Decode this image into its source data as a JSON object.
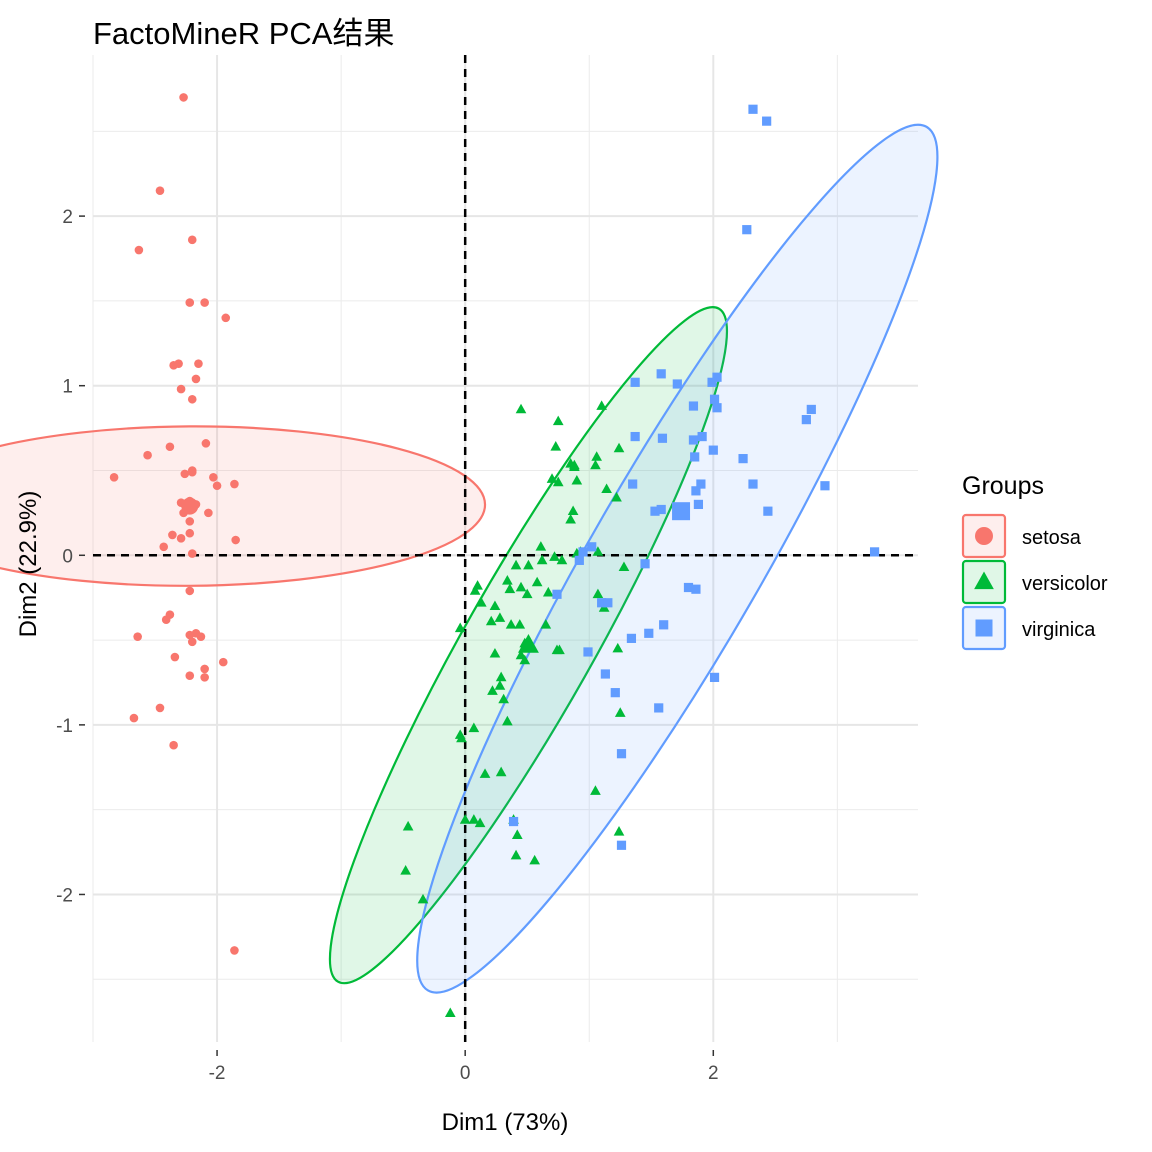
{
  "chart_data": {
    "type": "scatter",
    "title": "FactoMineR PCA结果",
    "xlabel": "Dim1 (73%)",
    "ylabel": "Dim2 (22.9%)",
    "xlim": [
      -3.0,
      3.65
    ],
    "ylim": [
      -2.87,
      2.95
    ],
    "x_ticks": [
      -2,
      0,
      2
    ],
    "y_ticks": [
      -2,
      -1,
      0,
      1,
      2
    ],
    "x_tick_labels": [
      "-2",
      "0",
      "2"
    ],
    "y_tick_labels": [
      "-2",
      "-1",
      "0",
      "1",
      "2"
    ],
    "grid": true,
    "reference_lines": {
      "x": 0,
      "y": 0,
      "style": "dashed"
    },
    "legend": {
      "title": "Groups",
      "placement": "right"
    },
    "series": [
      {
        "name": "setosa",
        "color": "#F8766D",
        "marker": "circle",
        "centroid": [
          -2.22,
          0.29
        ],
        "ellipse": {
          "center": [
            -2.22,
            0.29
          ],
          "rx": 0.47,
          "ry": 2.38,
          "angle": -0.3
        },
        "points": [
          [
            -2.27,
            2.7
          ],
          [
            -2.46,
            2.15
          ],
          [
            -2.63,
            1.8
          ],
          [
            -2.2,
            1.86
          ],
          [
            -2.22,
            1.49
          ],
          [
            -2.1,
            1.49
          ],
          [
            -1.93,
            1.4
          ],
          [
            -2.15,
            1.13
          ],
          [
            -2.35,
            1.12
          ],
          [
            -2.31,
            1.13
          ],
          [
            -2.17,
            1.04
          ],
          [
            -2.29,
            0.98
          ],
          [
            -2.2,
            0.92
          ],
          [
            -2.09,
            0.66
          ],
          [
            -2.38,
            0.64
          ],
          [
            -2.56,
            0.59
          ],
          [
            -2.2,
            0.5
          ],
          [
            -2.83,
            0.46
          ],
          [
            -2.26,
            0.48
          ],
          [
            -2.2,
            0.49
          ],
          [
            -2.03,
            0.46
          ],
          [
            -2.0,
            0.41
          ],
          [
            -1.86,
            0.42
          ],
          [
            -2.26,
            0.3
          ],
          [
            -2.17,
            0.3
          ],
          [
            -2.22,
            0.32
          ],
          [
            -2.29,
            0.31
          ],
          [
            -2.07,
            0.25
          ],
          [
            -2.27,
            0.25
          ],
          [
            -2.22,
            0.2
          ],
          [
            -2.36,
            0.12
          ],
          [
            -2.22,
            0.13
          ],
          [
            -1.85,
            0.09
          ],
          [
            -2.29,
            0.1
          ],
          [
            -2.43,
            0.05
          ],
          [
            -2.2,
            0.01
          ],
          [
            -2.22,
            -0.21
          ],
          [
            -2.38,
            -0.35
          ],
          [
            -2.41,
            -0.38
          ],
          [
            -2.64,
            -0.48
          ],
          [
            -2.17,
            -0.46
          ],
          [
            -2.22,
            -0.47
          ],
          [
            -2.13,
            -0.48
          ],
          [
            -2.2,
            -0.51
          ],
          [
            -2.34,
            -0.6
          ],
          [
            -1.95,
            -0.63
          ],
          [
            -2.1,
            -0.67
          ],
          [
            -2.22,
            -0.71
          ],
          [
            -2.1,
            -0.72
          ],
          [
            -2.46,
            -0.9
          ],
          [
            -2.67,
            -0.96
          ],
          [
            -2.35,
            -1.12
          ],
          [
            -1.86,
            -2.33
          ]
        ]
      },
      {
        "name": "versicolor",
        "color": "#00BA38",
        "marker": "triangle",
        "centroid": [
          0.51,
          -0.53
        ],
        "ellipse": {
          "center": [
            0.51,
            -0.53
          ],
          "rx": 2.28,
          "ry": 0.52,
          "angle": -60.5
        },
        "points": [
          [
            0.45,
            0.86
          ],
          [
            1.1,
            0.88
          ],
          [
            0.75,
            0.79
          ],
          [
            0.88,
            0.52
          ],
          [
            1.05,
            0.53
          ],
          [
            1.24,
            0.63
          ],
          [
            0.73,
            0.64
          ],
          [
            0.85,
            0.54
          ],
          [
            0.88,
            0.53
          ],
          [
            1.06,
            0.58
          ],
          [
            0.75,
            0.43
          ],
          [
            0.7,
            0.45
          ],
          [
            0.9,
            0.44
          ],
          [
            1.14,
            0.39
          ],
          [
            1.22,
            0.34
          ],
          [
            0.87,
            0.26
          ],
          [
            0.85,
            0.21
          ],
          [
            0.9,
            0.01
          ],
          [
            0.61,
            0.05
          ],
          [
            0.93,
            0.02
          ],
          [
            0.78,
            -0.03
          ],
          [
            0.62,
            -0.03
          ],
          [
            0.72,
            -0.01
          ],
          [
            0.51,
            -0.06
          ],
          [
            1.07,
            0.02
          ],
          [
            1.28,
            -0.07
          ],
          [
            0.41,
            -0.06
          ],
          [
            0.34,
            -0.15
          ],
          [
            0.45,
            -0.19
          ],
          [
            0.58,
            -0.16
          ],
          [
            0.67,
            -0.22
          ],
          [
            0.5,
            -0.23
          ],
          [
            0.36,
            -0.2
          ],
          [
            1.07,
            -0.23
          ],
          [
            0.1,
            -0.18
          ],
          [
            0.08,
            -0.21
          ],
          [
            0.13,
            -0.28
          ],
          [
            0.24,
            -0.3
          ],
          [
            0.28,
            -0.37
          ],
          [
            0.21,
            -0.39
          ],
          [
            1.12,
            -0.31
          ],
          [
            0.44,
            -0.41
          ],
          [
            0.37,
            -0.41
          ],
          [
            0.65,
            -0.41
          ],
          [
            0.48,
            -0.52
          ],
          [
            0.53,
            -0.53
          ],
          [
            0.48,
            -0.62
          ],
          [
            0.45,
            -0.59
          ],
          [
            0.24,
            -0.58
          ],
          [
            0.74,
            -0.56
          ],
          [
            0.76,
            -0.56
          ],
          [
            1.23,
            -0.55
          ],
          [
            -0.04,
            -0.43
          ],
          [
            0.29,
            -0.72
          ],
          [
            0.28,
            -0.77
          ],
          [
            0.22,
            -0.8
          ],
          [
            0.31,
            -0.85
          ],
          [
            0.34,
            -0.98
          ],
          [
            1.25,
            -0.93
          ],
          [
            0.07,
            -1.02
          ],
          [
            -0.04,
            -1.06
          ],
          [
            -0.03,
            -1.08
          ],
          [
            0.16,
            -1.29
          ],
          [
            0.29,
            -1.28
          ],
          [
            1.05,
            -1.39
          ],
          [
            0.0,
            -1.56
          ],
          [
            0.07,
            -1.56
          ],
          [
            0.12,
            -1.58
          ],
          [
            0.39,
            -1.56
          ],
          [
            0.42,
            -1.65
          ],
          [
            1.24,
            -1.63
          ],
          [
            -0.46,
            -1.6
          ],
          [
            0.41,
            -1.77
          ],
          [
            0.56,
            -1.8
          ],
          [
            -0.48,
            -1.86
          ],
          [
            -0.34,
            -2.03
          ],
          [
            -0.12,
            -2.7
          ]
        ]
      },
      {
        "name": "virginica",
        "color": "#619CFF",
        "marker": "square",
        "centroid": [
          1.74,
          0.26
        ],
        "ellipse": {
          "center": [
            1.71,
            -0.02
          ],
          "rx": 2.94,
          "ry": 0.69,
          "angle": -60
        },
        "points": [
          [
            2.32,
            2.63
          ],
          [
            2.43,
            2.56
          ],
          [
            2.27,
            1.92
          ],
          [
            1.58,
            1.07
          ],
          [
            2.03,
            1.05
          ],
          [
            1.37,
            1.02
          ],
          [
            1.71,
            1.01
          ],
          [
            1.99,
            1.02
          ],
          [
            2.01,
            0.92
          ],
          [
            1.84,
            0.88
          ],
          [
            2.03,
            0.87
          ],
          [
            2.79,
            0.86
          ],
          [
            2.75,
            0.8
          ],
          [
            1.37,
            0.7
          ],
          [
            1.59,
            0.69
          ],
          [
            1.84,
            0.68
          ],
          [
            1.91,
            0.7
          ],
          [
            1.85,
            0.58
          ],
          [
            2.0,
            0.62
          ],
          [
            2.24,
            0.57
          ],
          [
            1.35,
            0.42
          ],
          [
            1.9,
            0.42
          ],
          [
            1.86,
            0.38
          ],
          [
            2.32,
            0.42
          ],
          [
            2.9,
            0.41
          ],
          [
            1.53,
            0.26
          ],
          [
            1.58,
            0.27
          ],
          [
            1.76,
            0.28
          ],
          [
            1.88,
            0.3
          ],
          [
            2.44,
            0.26
          ],
          [
            1.02,
            0.05
          ],
          [
            0.95,
            0.02
          ],
          [
            0.92,
            -0.03
          ],
          [
            1.45,
            -0.05
          ],
          [
            1.8,
            -0.19
          ],
          [
            1.86,
            -0.2
          ],
          [
            0.74,
            -0.23
          ],
          [
            1.1,
            -0.28
          ],
          [
            1.15,
            -0.28
          ],
          [
            1.48,
            -0.46
          ],
          [
            1.6,
            -0.41
          ],
          [
            1.34,
            -0.49
          ],
          [
            0.99,
            -0.57
          ],
          [
            1.13,
            -0.7
          ],
          [
            2.01,
            -0.72
          ],
          [
            1.21,
            -0.81
          ],
          [
            1.56,
            -0.9
          ],
          [
            1.26,
            -1.17
          ],
          [
            0.39,
            -1.57
          ],
          [
            1.26,
            -1.71
          ],
          [
            3.3,
            0.02
          ]
        ]
      }
    ]
  }
}
